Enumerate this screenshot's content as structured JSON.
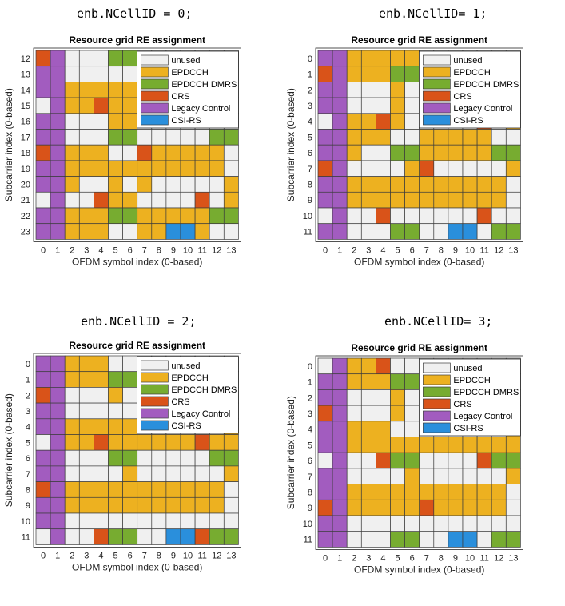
{
  "captions": [
    "enb.NCellID = 0;",
    "enb.NCellID= 1;",
    "enb.NCellID = 2;",
    "enb.NCellID= 3;"
  ],
  "colors": {
    "unused": "#f0f0f0",
    "EPDCCH": "#edb120",
    "EPDCCH DMRS": "#77ac30",
    "CRS": "#d95319",
    "Legacy Control": "#a25cbf",
    "CSI-RS": "#2a8fdc"
  },
  "chart_data": [
    {
      "type": "heatmap",
      "title": "Resource grid RE assignment",
      "xlabel": "OFDM symbol index (0-based)",
      "ylabel": "Subcarrier index (0-based)",
      "x": [
        0,
        1,
        2,
        3,
        4,
        5,
        6,
        7,
        8,
        9,
        10,
        11,
        12,
        13
      ],
      "y": [
        12,
        13,
        14,
        15,
        16,
        17,
        18,
        19,
        20,
        21,
        22,
        23
      ],
      "legend": [
        "unused",
        "EPDCCH",
        "EPDCCH DMRS",
        "CRS",
        "Legacy Control",
        "CSI-RS"
      ],
      "legend_position": "top-right",
      "grid": [
        "CLUUUDDUUUUUUU",
        "LLUUUUUUUUUUUU",
        "LLEEEEEUUUUUUU",
        "ULEECEEUUUUUUU",
        "LLUUUEEUUUUUUU",
        "LLUUUDDUUUUUDD",
        "CLEEEUUCEEEEEU",
        "LLEEEEEEEEEEEU",
        "LLEUUEUEUUUUUE",
        "ULUUCEEUUUUCUE",
        "LLEEEDDEEEEEDD",
        "LLEEEUUEESSEUU"
      ]
    },
    {
      "type": "heatmap",
      "title": "Resource grid RE assignment",
      "xlabel": "OFDM symbol index (0-based)",
      "ylabel": "Subcarrier index (0-based)",
      "x": [
        0,
        1,
        2,
        3,
        4,
        5,
        6,
        7,
        8,
        9,
        10,
        11,
        12,
        13
      ],
      "y": [
        0,
        1,
        2,
        3,
        4,
        5,
        6,
        7,
        8,
        9,
        10,
        11
      ],
      "legend": [
        "unused",
        "EPDCCH",
        "EPDCCH DMRS",
        "CRS",
        "Legacy Control",
        "CSI-RS"
      ],
      "legend_position": "top-right",
      "grid": [
        "LLEEEEEUUUUUUU",
        "CLEEEDDUUUUUUU",
        "LLUUUEUUUUUUUU",
        "LLUUUEUUUUUUUU",
        "ULEECEUUUUUCUE",
        "LLEEEUUEEEEEUU",
        "LLEUUDDEEEEEDD",
        "CLUUUUECUUUUUE",
        "LLEEEEEEEEEEEU",
        "LLEEEEEEEEEEEU",
        "ULUUCUUUUUUCUU",
        "LLUUUDDUUSSUDD"
      ]
    },
    {
      "type": "heatmap",
      "title": "Resource grid RE assignment",
      "xlabel": "OFDM symbol index (0-based)",
      "ylabel": "Subcarrier index (0-based)",
      "x": [
        0,
        1,
        2,
        3,
        4,
        5,
        6,
        7,
        8,
        9,
        10,
        11,
        12,
        13
      ],
      "y": [
        0,
        1,
        2,
        3,
        4,
        5,
        6,
        7,
        8,
        9,
        10,
        11
      ],
      "legend": [
        "unused",
        "EPDCCH",
        "EPDCCH DMRS",
        "CRS",
        "Legacy Control",
        "CSI-RS"
      ],
      "legend_position": "top-right",
      "grid": [
        "LLEEEUUUUUUUUU",
        "LLEEEDDUUUUUUU",
        "CLUUUEUUUUUUUU",
        "LLUUUUUUUUUUUU",
        "LLEEEEEUUUUUUE",
        "ULEECEEEEEECEE",
        "LLUUUDDUUUUUDD",
        "LLUUUUEUUUUUUE",
        "CLEEEEEEEEEEEU",
        "LLEEEEEEEEEEEU",
        "LLUUUUUUUUUUUU",
        "ULUUCDDUUSSCDD"
      ]
    },
    {
      "type": "heatmap",
      "title": "Resource grid RE assignment",
      "xlabel": "OFDM symbol index (0-based)",
      "ylabel": "Subcarrier index (0-based)",
      "x": [
        0,
        1,
        2,
        3,
        4,
        5,
        6,
        7,
        8,
        9,
        10,
        11,
        12,
        13
      ],
      "y": [
        0,
        1,
        2,
        3,
        4,
        5,
        6,
        7,
        8,
        9,
        10,
        11
      ],
      "legend": [
        "unused",
        "EPDCCH",
        "EPDCCH DMRS",
        "CRS",
        "Legacy Control",
        "CSI-RS"
      ],
      "legend_position": "top-right",
      "grid": [
        "ULEECUUUUUUUUU",
        "LLEEEDDUUUUUUU",
        "LLUUUEUUUUUUUU",
        "CLUUUEUUUUUUUU",
        "LLEEEUUUUUUUUE",
        "LLEEEEEEEEEEEE",
        "ULUUCDDUUUUCDD",
        "LLUUUUEUUUUUUE",
        "LLEEEEEEEEEEEU",
        "CLEEEEECEEEEEU",
        "LLUUUUUUUUUUUU",
        "LLUUUDDUUSSUDD"
      ]
    }
  ]
}
